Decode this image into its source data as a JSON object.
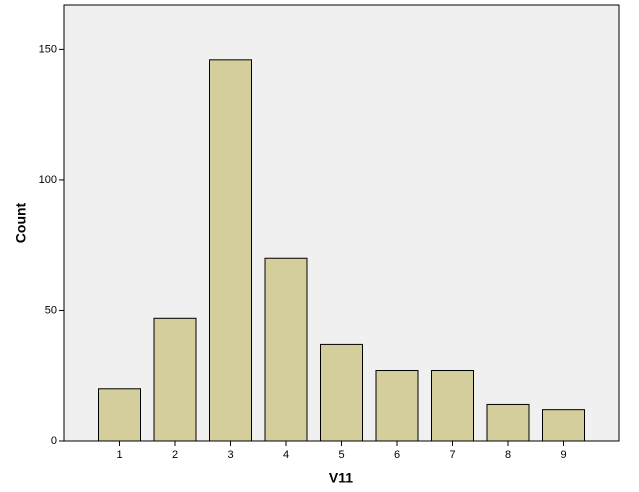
{
  "chart_data": {
    "type": "bar",
    "x_label": "V11",
    "y_label": "Count",
    "categories": [
      "1",
      "2",
      "3",
      "4",
      "5",
      "6",
      "7",
      "8",
      "9"
    ],
    "values": [
      20,
      47,
      146,
      70,
      37,
      27,
      27,
      14,
      12
    ],
    "color": "#d3ce9b",
    "background": "#f0f0f0",
    "ylim": [
      0,
      167
    ],
    "yticks": [
      0,
      50,
      100,
      150
    ],
    "grid": false
  }
}
